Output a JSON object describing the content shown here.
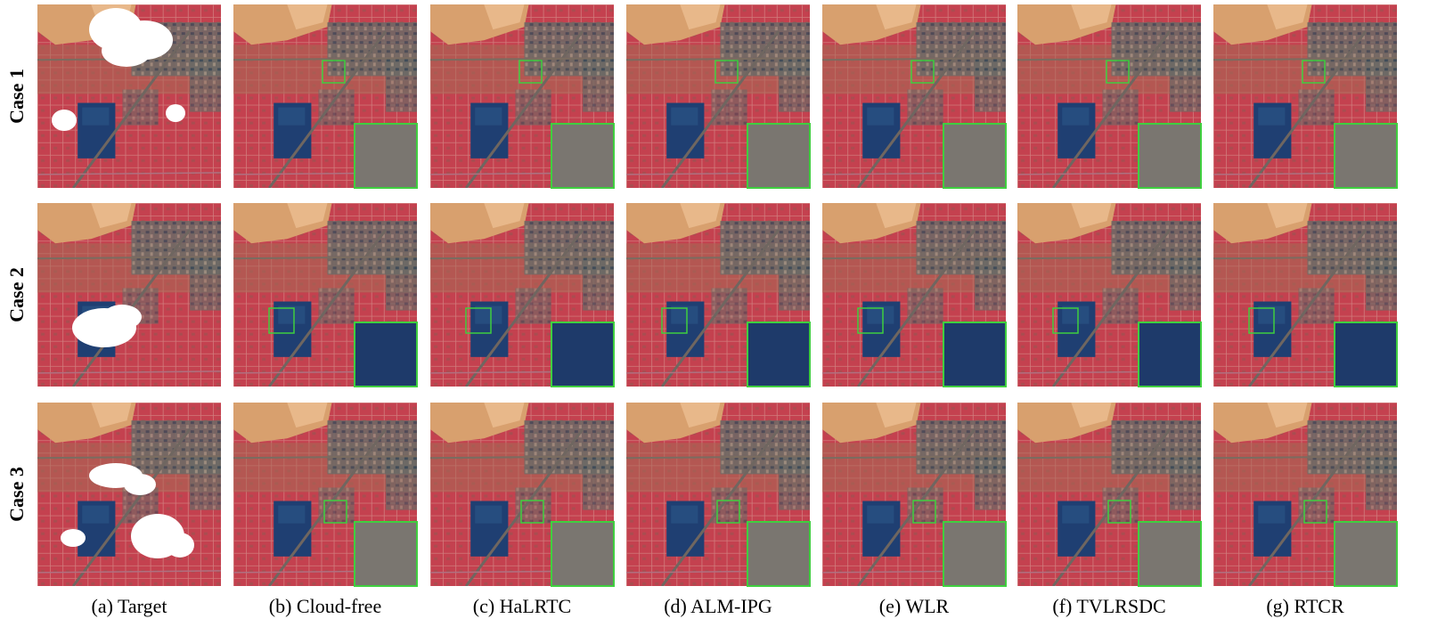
{
  "row_labels": [
    "Case 1",
    "Case 2",
    "Case 3"
  ],
  "column_labels": [
    "(a) Target",
    "(b) Cloud-free",
    "(c) HaLRTC",
    "(d) ALM-IPG",
    "(e) WLR",
    "(f) TVLRSDC",
    "(g) RTCR"
  ]
}
